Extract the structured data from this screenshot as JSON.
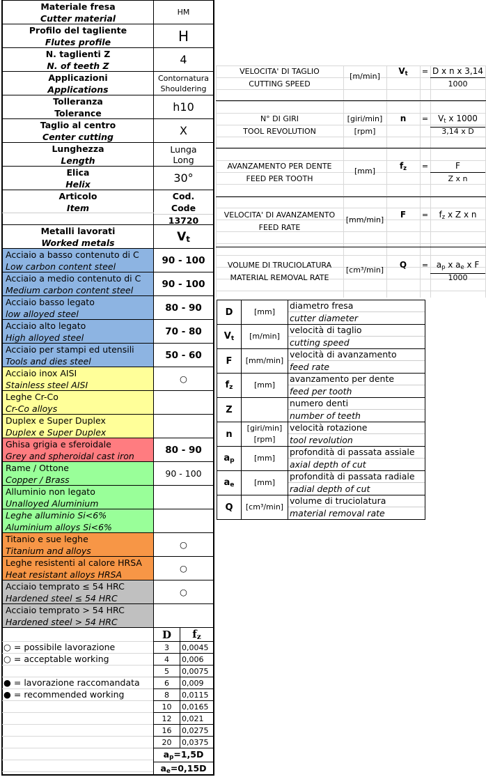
{
  "specs": [
    {
      "it": "Materiale fresa",
      "en": "Cutter material",
      "value": "HM",
      "size": "small"
    },
    {
      "it": "Profilo del tagliente",
      "en": "Flutes profile",
      "value": "H",
      "size": "large"
    },
    {
      "it": "N. taglienti Z",
      "en": "N. of teeth Z",
      "value": "4",
      "size": "med"
    },
    {
      "it": "Applicazioni",
      "en": "Applications",
      "value": "Contornatura",
      "value2": "Shouldering",
      "size": "small"
    },
    {
      "it": "Tolleranza",
      "en": "Tolerance",
      "value": "h10",
      "size": "med",
      "en_upright": true
    },
    {
      "it": "Taglio al centro",
      "en": "Center cutting",
      "value": "X",
      "size": "med"
    },
    {
      "it": "Lunghezza",
      "en": "Length",
      "value": "Lunga",
      "value2": "Long",
      "size": "small13"
    },
    {
      "it": "Elica",
      "en": "Helix",
      "value": "30°",
      "size": "med"
    }
  ],
  "article": {
    "it": "Articolo",
    "en": "Item",
    "code_it": "Cod.",
    "code_en": "Code",
    "code": "13720"
  },
  "metals_header": {
    "it": "Metalli lavorati",
    "en": "Worked metals",
    "vt": "V",
    "vt_sub": "t"
  },
  "materials": [
    {
      "it": "Acciaio a basso contenuto di C",
      "en": "Low carbon content steel",
      "vt": "90 - 100",
      "bold": true,
      "color": "#8db4e2"
    },
    {
      "it": "Acciaio a medio contenuto di C",
      "en": "Medium carbon content steel",
      "vt": "90 - 100",
      "bold": true,
      "color": "#8db4e2"
    },
    {
      "it": "Acciaio basso legato",
      "en": "low alloyed steel",
      "vt": "80 - 90",
      "bold": true,
      "color": "#8db4e2"
    },
    {
      "it": "Acciaio alto legato",
      "en": "High alloyed steel",
      "vt": "70 - 80",
      "bold": true,
      "color": "#8db4e2"
    },
    {
      "it": "Acciaio per stampi ed utensili",
      "en": "Tools and dies steel",
      "vt": "50 - 60",
      "bold": true,
      "color": "#8db4e2"
    },
    {
      "it": "Acciaio inox AISI",
      "en": "Stainless steel AISI",
      "vt": "○",
      "color": "#ffff99"
    },
    {
      "it": "Leghe Cr-Co",
      "en": "Cr-Co alloys",
      "vt": "",
      "color": "#ffff99"
    },
    {
      "it": "Duplex e Super Duplex",
      "en": "Duplex e Super Duplex",
      "vt": "",
      "color": "#ffff99"
    },
    {
      "it": "Ghisa grigia e sferoidale",
      "en": "Grey and spheroidal cast iron",
      "vt": "80 - 90",
      "bold": true,
      "color": "#ff7c80"
    },
    {
      "it": "Rame / Ottone",
      "en": "Copper / Brass",
      "vt": "90 - 100",
      "color": "#99ff99"
    },
    {
      "it": "Alluminio non legato",
      "en": "Unalloyed Aluminium",
      "vt": "",
      "color": "#99ff99"
    },
    {
      "it": "Leghe alluminio Si<6%",
      "en": "Aluminium alloys Si<6%",
      "vt": "",
      "color": "#99ff99",
      "it_italic": true
    },
    {
      "it": "Titanio e sue leghe",
      "en": "Titanium and alloys",
      "vt": "○",
      "color": "#f79646"
    },
    {
      "it": "Leghe resistenti al calore HRSA",
      "en": "Heat resistant alloys HRSA",
      "vt": "○",
      "color": "#f79646"
    },
    {
      "it": "Acciaio temprato ≤ 54 HRC",
      "en": "Hardened steel ≤ 54 HRC",
      "vt": "○",
      "color": "#c0c0c0"
    },
    {
      "it": "Acciaio temprato > 54 HRC",
      "en": "Hardened steel > 54 HRC",
      "vt": "",
      "color": "#c0c0c0"
    }
  ],
  "symbols_legend": [
    "○ = possibile lavorazione",
    "○ = acceptable working",
    "",
    "● = lavorazione raccomandata",
    "● = recommended working"
  ],
  "feed_table": {
    "header_d": "D",
    "header_fz": "f",
    "header_fz_sub": "z",
    "rows": [
      [
        "3",
        "0,0045"
      ],
      [
        "4",
        "0,006"
      ],
      [
        "5",
        "0,0075"
      ],
      [
        "6",
        "0,009"
      ],
      [
        "8",
        "0,0115"
      ],
      [
        "10",
        "0,0165"
      ],
      [
        "12",
        "0,021"
      ],
      [
        "16",
        "0,0275"
      ],
      [
        "20",
        "0,0375"
      ]
    ],
    "ap": {
      "a": "a",
      "sub": "p",
      "rest": "=1,5D"
    },
    "ae": {
      "a": "a",
      "sub": "e",
      "rest": "=0,15D"
    }
  },
  "formulas": [
    {
      "it": "VELOCITA' DI TAGLIO",
      "en": "CUTTING SPEED",
      "unit1": "[m/min]",
      "unit2": "",
      "sym": [
        {
          "t": "V"
        },
        {
          "s": "t"
        }
      ],
      "eq": "=",
      "num": [
        {
          "t": "D x n x 3,14"
        }
      ],
      "den": [
        {
          "t": "1000"
        }
      ]
    },
    {
      "it": "N° DI GIRI",
      "en": "TOOL REVOLUTION",
      "unit1": "[giri/min]",
      "unit2": "[rpm]",
      "sym": [
        {
          "t": "n"
        }
      ],
      "eq": "=",
      "num": [
        {
          "t": "V"
        },
        {
          "s": "t"
        },
        {
          "t": " x 1000"
        }
      ],
      "den": [
        {
          "t": "3,14 x D"
        }
      ]
    },
    {
      "it": "AVANZAMENTO PER DENTE",
      "en": "FEED PER TOOTH",
      "unit1": "[mm]",
      "unit2": "",
      "sym": [
        {
          "t": "f"
        },
        {
          "s": "z"
        }
      ],
      "eq": "=",
      "num": [
        {
          "t": "F"
        }
      ],
      "den": [
        {
          "t": "Z x n"
        }
      ]
    },
    {
      "it": "VELOCITA' DI AVANZAMENTO",
      "en": "FEED RATE",
      "unit1": "[mm/min]",
      "unit2": "",
      "sym": [
        {
          "t": "F"
        }
      ],
      "eq": "=",
      "num": [
        {
          "t": "f"
        },
        {
          "s": "z"
        },
        {
          "t": " x Z x n"
        }
      ],
      "den": null
    },
    {
      "it": "VOLUME DI TRUCIOLATURA",
      "en": "MATERIAL REMOVAL RATE",
      "unit1": "[cm³/min]",
      "unit2": "",
      "sym": [
        {
          "t": "Q"
        }
      ],
      "eq": "=",
      "num": [
        {
          "t": "a"
        },
        {
          "s": "p"
        },
        {
          "t": " x a"
        },
        {
          "s": "e"
        },
        {
          "t": " x F"
        }
      ],
      "den": [
        {
          "t": "1000"
        }
      ]
    }
  ],
  "parameters": [
    {
      "sym": [
        {
          "t": "D"
        }
      ],
      "unit": "[mm]",
      "unit2": "",
      "it": "diametro fresa",
      "en": "cutter diameter"
    },
    {
      "sym": [
        {
          "t": "V"
        },
        {
          "s": "t"
        }
      ],
      "unit": "[m/min]",
      "unit2": "",
      "it": "velocità di taglio",
      "en": "cutting speed"
    },
    {
      "sym": [
        {
          "t": "F"
        }
      ],
      "unit": "[mm/min]",
      "unit2": "",
      "it": "velocità di avanzamento",
      "en": "feed rate"
    },
    {
      "sym": [
        {
          "t": "f"
        },
        {
          "s": "z"
        }
      ],
      "unit": "[mm]",
      "unit2": "",
      "it": "avanzamento per dente",
      "en": "feed per tooth"
    },
    {
      "sym": [
        {
          "t": "Z"
        }
      ],
      "unit": "",
      "unit2": "",
      "it": "numero denti",
      "en": "number of teeth"
    },
    {
      "sym": [
        {
          "t": "n"
        }
      ],
      "unit": "[giri/min]",
      "unit2": "[rpm]",
      "it": "velocità rotazione",
      "en": "tool revolution"
    },
    {
      "sym": [
        {
          "t": "a"
        },
        {
          "s": "p"
        }
      ],
      "unit": "[mm]",
      "unit2": "",
      "it": "profondità di passata assiale",
      "en": "axial depth of cut"
    },
    {
      "sym": [
        {
          "t": "a"
        },
        {
          "s": "e"
        }
      ],
      "unit": "[mm]",
      "unit2": "",
      "it": "profondità di passata radiale",
      "en": "radial depth of cut"
    },
    {
      "sym": [
        {
          "t": "Q"
        }
      ],
      "unit": "[cm³/min]",
      "unit2": "",
      "it": "volume di truciolatura",
      "en": "material removal rate"
    }
  ]
}
